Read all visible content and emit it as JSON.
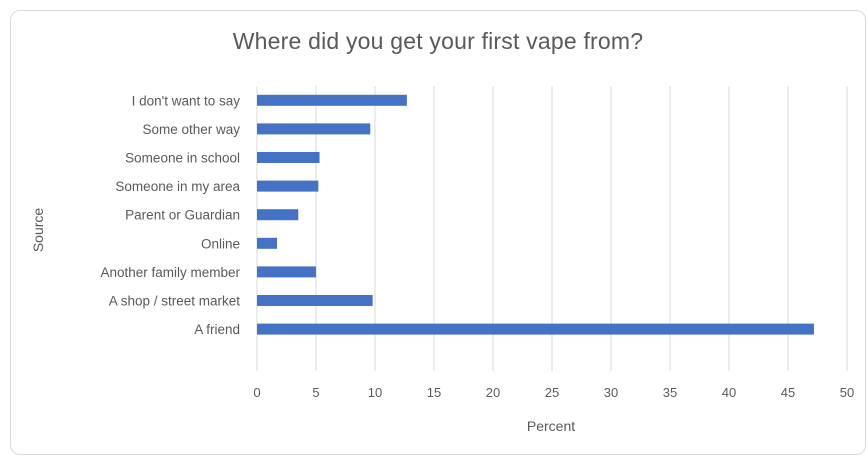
{
  "chart_data": {
    "type": "bar",
    "orientation": "horizontal",
    "title": "Where did you get your first vape from?",
    "xlabel": "Percent",
    "ylabel": "Source",
    "categories": [
      "I don't want to say",
      "Some other way",
      "Someone in school",
      "Someone in my area",
      "Parent or Guardian",
      "Online",
      "Another family member",
      "A shop / street market",
      "A friend"
    ],
    "values": [
      12.7,
      9.6,
      5.3,
      5.2,
      3.5,
      1.7,
      5.0,
      9.8,
      47.2
    ],
    "xlim": [
      0,
      50
    ],
    "xticks": [
      0,
      5,
      10,
      15,
      20,
      25,
      30,
      35,
      40,
      45,
      50
    ],
    "grid": "vertical",
    "legend": "none",
    "bar_color": "#4472C4"
  }
}
